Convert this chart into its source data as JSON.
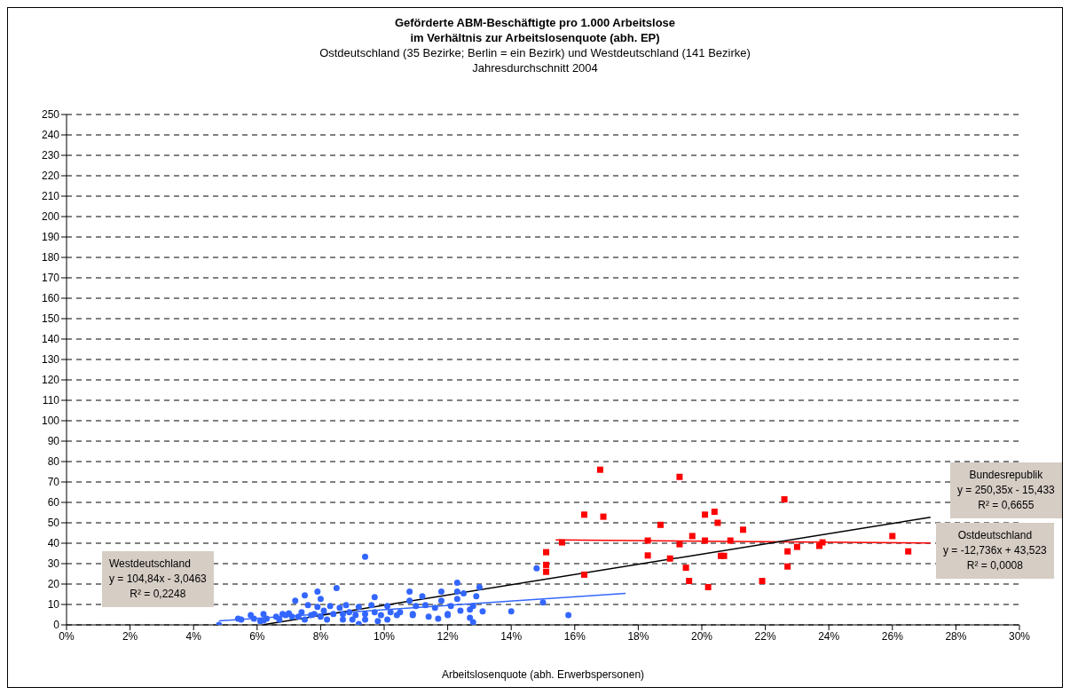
{
  "chart_data": {
    "type": "scatter",
    "title": "Geförderte ABM-Beschäftigte pro 1.000 Arbeitslose\nim Verhältnis zur Arbeitslosenquote (abh. EP)",
    "subtitle": "Ostdeutschland (35 Bezirke; Berlin = ein Bezirk) und Westdeutschland (141 Bezirke)\nJahresdurchschnitt 2004",
    "xlabel": "Arbeitslosenquote (abh. Erwerbspersonen)",
    "xlim": [
      0,
      30
    ],
    "xticks": [
      {
        "value": 0,
        "label": "0%"
      },
      {
        "value": 2,
        "label": "2%"
      },
      {
        "value": 4,
        "label": "4%"
      },
      {
        "value": 6,
        "label": "6%"
      },
      {
        "value": 8,
        "label": "8%"
      },
      {
        "value": 10,
        "label": "10%"
      },
      {
        "value": 12,
        "label": "12%"
      },
      {
        "value": 14,
        "label": "14%"
      },
      {
        "value": 16,
        "label": "16%"
      },
      {
        "value": 18,
        "label": "18%"
      },
      {
        "value": 20,
        "label": "20%"
      },
      {
        "value": 22,
        "label": "22%"
      },
      {
        "value": 24,
        "label": "24%"
      },
      {
        "value": 26,
        "label": "26%"
      },
      {
        "value": 28,
        "label": "28%"
      },
      {
        "value": 30,
        "label": "30%"
      }
    ],
    "ylim": [
      0,
      250
    ],
    "yticks": [
      0,
      10,
      20,
      30,
      40,
      50,
      60,
      70,
      80,
      90,
      100,
      110,
      120,
      130,
      140,
      150,
      160,
      170,
      180,
      190,
      200,
      210,
      220,
      230,
      240,
      250
    ],
    "grid": "y",
    "legend": false,
    "series": [
      {
        "type": "scatter",
        "marker": "circle",
        "color": "#3366ff",
        "x": [
          4.8,
          5.4,
          5.5,
          5.8,
          5.9,
          6.1,
          6.2,
          6.2,
          6.3,
          6.6,
          6.7,
          6.8,
          6.9,
          7.0,
          7.1,
          7.2,
          7.3,
          7.4,
          7.5,
          7.5,
          7.6,
          7.7,
          7.8,
          7.9,
          7.9,
          8.0,
          8.0,
          8.1,
          8.2,
          8.3,
          8.4,
          8.5,
          8.6,
          8.7,
          8.7,
          8.8,
          8.9,
          9.0,
          9.1,
          9.2,
          9.2,
          9.4,
          9.4,
          9.4,
          9.6,
          9.7,
          9.7,
          9.8,
          9.9,
          10.1,
          10.1,
          10.2,
          10.4,
          10.5,
          10.8,
          10.8,
          10.9,
          10.9,
          11.0,
          11.2,
          11.3,
          11.4,
          11.6,
          11.7,
          11.8,
          11.8,
          12.0,
          12.3,
          12.3,
          12.3,
          12.5,
          12.0,
          12.1,
          12.4,
          12.7,
          12.7,
          12.8,
          12.8,
          12.9,
          13.0,
          13.1,
          14.0,
          14.8,
          15.0,
          15.8
        ],
        "values": [
          0,
          3,
          2.6,
          4.8,
          3,
          1.8,
          5.3,
          2.2,
          3,
          4,
          2.6,
          5.3,
          4.8,
          5.7,
          4,
          11.9,
          4,
          6.2,
          14.5,
          2.6,
          9.7,
          4.8,
          5.3,
          16.3,
          8.8,
          4,
          12.7,
          7,
          2.6,
          9.2,
          5.3,
          18,
          8.4,
          2.6,
          5.3,
          9.7,
          6.2,
          2.6,
          4.8,
          8.8,
          0.4,
          33.4,
          5.3,
          2.6,
          9.7,
          6.2,
          13.6,
          1.8,
          4.8,
          9.2,
          2.6,
          6.2,
          4.8,
          6.2,
          16.3,
          11.9,
          4.8,
          5.3,
          9.2,
          14,
          9.7,
          4,
          8.4,
          3,
          16.3,
          11.9,
          5.3,
          20.7,
          16.3,
          12.7,
          15.4,
          4.8,
          9.2,
          7,
          7.5,
          3.5,
          1.3,
          9.2,
          14,
          18.5,
          6.6,
          6.6,
          27.7,
          11,
          4.8
        ]
      },
      {
        "type": "scatter",
        "marker": "square",
        "color": "#ff0000",
        "x": [
          15.1,
          15.1,
          15.1,
          15.6,
          16.3,
          16.3,
          16.8,
          16.9,
          18.3,
          18.3,
          18.7,
          19.0,
          19.3,
          19.3,
          19.5,
          19.6,
          19.7,
          20.1,
          20.1,
          20.2,
          20.4,
          20.5,
          20.6,
          20.7,
          20.9,
          21.3,
          21.9,
          22.6,
          22.7,
          22.7,
          23.0,
          23.7,
          23.8,
          26.0,
          26.5
        ],
        "values": [
          35.6,
          29.4,
          26,
          40.4,
          54,
          24.6,
          76,
          53,
          41.3,
          34,
          49,
          32.5,
          72.5,
          39.5,
          28,
          21.5,
          43.5,
          41.3,
          54,
          18.5,
          55.4,
          50,
          33.8,
          33.8,
          41.3,
          46.6,
          21.5,
          61.5,
          36,
          28.6,
          38.2,
          38.7,
          40.4,
          43.5,
          36
        ]
      },
      {
        "type": "line",
        "marker": "none",
        "color": "#3366ff",
        "x": [
          4.8,
          17.6
        ],
        "values": [
          2.0,
          15.4
        ]
      },
      {
        "type": "line",
        "marker": "none",
        "color": "#ff0000",
        "x": [
          15.4,
          27.2
        ],
        "values": [
          41.6,
          40.1
        ]
      },
      {
        "type": "line",
        "marker": "none",
        "color": "#000000",
        "x": [
          6.2,
          27.2
        ],
        "values": [
          0.1,
          52.7
        ]
      }
    ],
    "annotations": [
      "Westdeutschland\ny = 104,84x - 3,0463\nR² = 0,2248",
      "Bundesrepublik\ny = 250,35x - 15,433\nR² = 0,6655",
      "Ostdeutschland\ny = -12,736x + 43,523\nR² = 0,0008"
    ]
  }
}
